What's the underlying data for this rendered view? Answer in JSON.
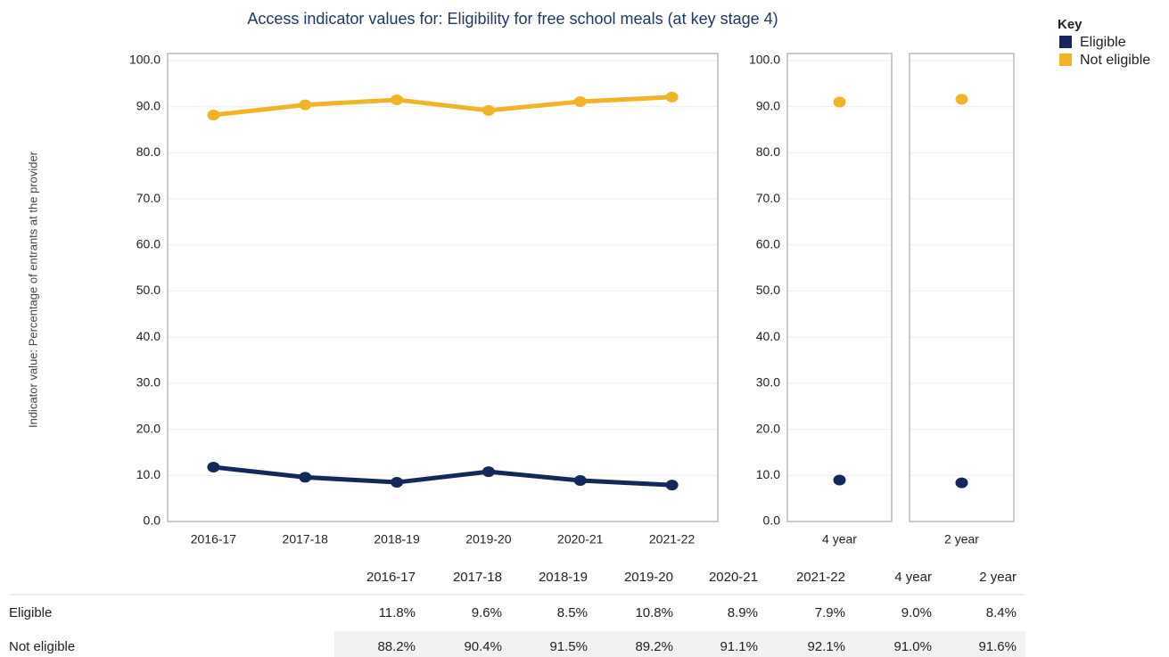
{
  "chart_data": [
    {
      "type": "line",
      "title": "Access indicator values for: Eligibility for free school meals (at key stage 4)",
      "y_label": "Indicator value: Percentage of  entrants at the provider",
      "categories": [
        "2016-17",
        "2017-18",
        "2018-19",
        "2019-20",
        "2020-21",
        "2021-22"
      ],
      "series": [
        {
          "name": "Eligible",
          "color": "#14285a",
          "values": [
            11.8,
            9.6,
            8.5,
            10.8,
            8.9,
            7.9
          ]
        },
        {
          "name": "Not eligible",
          "color": "#f0b429",
          "values": [
            88.2,
            90.4,
            91.5,
            89.2,
            91.1,
            92.1
          ]
        }
      ],
      "ylim": [
        0,
        100
      ],
      "yticks": [
        {
          "value": 0,
          "label": "0.0"
        },
        {
          "value": 10,
          "label": "10.0"
        },
        {
          "value": 20,
          "label": "20.0"
        },
        {
          "value": 30,
          "label": "30.0"
        },
        {
          "value": 40,
          "label": "40.0"
        },
        {
          "value": 50,
          "label": "50.0"
        },
        {
          "value": 60,
          "label": "60.0"
        },
        {
          "value": 70,
          "label": "70.0"
        },
        {
          "value": 80,
          "label": "80.0"
        },
        {
          "value": 90,
          "label": "90.0"
        },
        {
          "value": 100,
          "label": "100.0"
        }
      ]
    },
    {
      "type": "scatter",
      "categories": [
        "4 year"
      ],
      "series": [
        {
          "color": "#14285a",
          "values": [
            9.0
          ]
        },
        {
          "color": "#f0b429",
          "values": [
            91.0
          ]
        }
      ],
      "ylim": [
        0,
        100
      ],
      "yticks": [
        {
          "value": 0,
          "label": "0.0"
        },
        {
          "value": 10,
          "label": "10.0"
        },
        {
          "value": 20,
          "label": "20.0"
        },
        {
          "value": 30,
          "label": "30.0"
        },
        {
          "value": 40,
          "label": "40.0"
        },
        {
          "value": 50,
          "label": "50.0"
        },
        {
          "value": 60,
          "label": "60.0"
        },
        {
          "value": 70,
          "label": "70.0"
        },
        {
          "value": 80,
          "label": "80.0"
        },
        {
          "value": 90,
          "label": "90.0"
        },
        {
          "value": 100,
          "label": "100.0"
        }
      ]
    },
    {
      "type": "scatter",
      "categories": [
        "2 year"
      ],
      "series": [
        {
          "color": "#14285a",
          "values": [
            8.4
          ]
        },
        {
          "color": "#f0b429",
          "values": [
            91.6
          ]
        }
      ],
      "ylim": [
        0,
        100
      ],
      "yticks": [
        0,
        10,
        20,
        30,
        40,
        50,
        60,
        70,
        80,
        90,
        100
      ]
    }
  ],
  "legend": {
    "title": "Key"
  },
  "table": {
    "columns": [
      "2016-17",
      "2017-18",
      "2018-19",
      "2019-20",
      "2020-21",
      "2021-22",
      "4 year",
      "2 year"
    ],
    "rows": [
      {
        "label": "Eligible",
        "cells": [
          "11.8%",
          "9.6%",
          "8.5%",
          "10.8%",
          "8.9%",
          "7.9%",
          "9.0%",
          "8.4%"
        ]
      },
      {
        "label": "Not eligible",
        "cells": [
          "88.2%",
          "90.4%",
          "91.5%",
          "89.2%",
          "91.1%",
          "92.1%",
          "91.0%",
          "91.6%"
        ]
      }
    ]
  }
}
